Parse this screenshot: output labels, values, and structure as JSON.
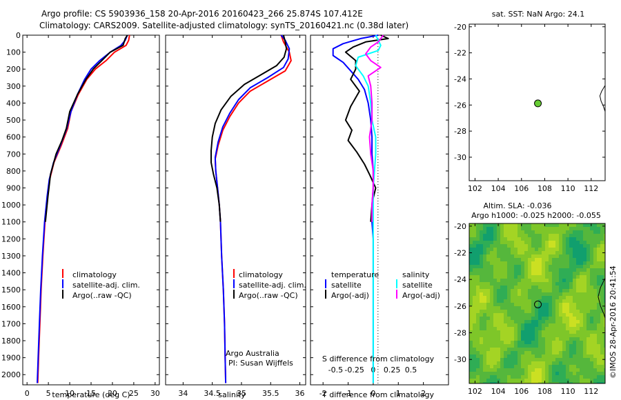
{
  "header": {
    "title_line1": "Argo profile: CS 5903936_158 20-Apr-2016 20160423_266 25.874S 107.412E",
    "title_line2": "Climatology: CARS2009. Satellite-adjusted climatology: synTS_20160421.nc (0.38d later)"
  },
  "credit": "©IMOS 28-Apr-2016 20:41:54",
  "colors": {
    "climatology": "#ff0000",
    "satellite_adj_clim": "#0000ff",
    "argo": "#000000",
    "t_satellite": "#0000ff",
    "s_satellite": "#00ffff",
    "s_argo_adj": "#ff00ff",
    "float_marker": "#66cc33"
  },
  "chart_data": [
    {
      "id": "temperature",
      "type": "line",
      "xlabel": "temperature (deg C)",
      "ylabel": "",
      "xlim": [
        -1,
        31
      ],
      "ylim": [
        2060,
        0
      ],
      "xticks": [
        "0",
        "5",
        "10",
        "15",
        "20",
        "25",
        "30"
      ],
      "xtick_values": [
        0,
        5,
        10,
        15,
        20,
        25,
        30
      ],
      "yticks": [
        "0",
        "100",
        "200",
        "300",
        "400",
        "500",
        "600",
        "700",
        "800",
        "900",
        "1000",
        "1100",
        "1200",
        "1300",
        "1400",
        "1500",
        "1600",
        "1700",
        "1800",
        "1900",
        "2000"
      ],
      "ytick_values": [
        0,
        100,
        200,
        300,
        400,
        500,
        600,
        700,
        800,
        900,
        1000,
        1100,
        1200,
        1300,
        1400,
        1500,
        1600,
        1700,
        1800,
        1900,
        2000
      ],
      "legend": [
        "climatology",
        "satellite-adj. clim.",
        "Argo(..raw -QC)"
      ],
      "series": [
        {
          "name": "climatology",
          "color": "#ff0000",
          "points": [
            [
              24,
              0
            ],
            [
              23.8,
              30
            ],
            [
              23.2,
              60
            ],
            [
              20.5,
              100
            ],
            [
              18.5,
              150
            ],
            [
              16,
              200
            ],
            [
              14,
              260
            ],
            [
              12,
              350
            ],
            [
              10.3,
              450
            ],
            [
              9.5,
              550
            ],
            [
              8,
              650
            ],
            [
              6.3,
              750
            ],
            [
              5.3,
              850
            ],
            [
              4.8,
              950
            ],
            [
              4.2,
              1100
            ],
            [
              3.7,
              1300
            ],
            [
              3.3,
              1500
            ],
            [
              3,
              1700
            ],
            [
              2.7,
              1900
            ],
            [
              2.5,
              2050
            ]
          ]
        },
        {
          "name": "satellite-adj. clim.",
          "color": "#0000ff",
          "points": [
            [
              23.5,
              0
            ],
            [
              23,
              30
            ],
            [
              22,
              60
            ],
            [
              19.5,
              100
            ],
            [
              17,
              150
            ],
            [
              15,
              200
            ],
            [
              13.5,
              260
            ],
            [
              11.8,
              350
            ],
            [
              10.3,
              450
            ],
            [
              9.3,
              550
            ],
            [
              7.8,
              650
            ],
            [
              6.2,
              750
            ],
            [
              5.2,
              850
            ],
            [
              4.7,
              950
            ],
            [
              4.1,
              1100
            ],
            [
              3.6,
              1300
            ],
            [
              3.2,
              1500
            ],
            [
              2.9,
              1700
            ],
            [
              2.6,
              1900
            ],
            [
              2.4,
              2050
            ]
          ]
        },
        {
          "name": "Argo(..raw -QC)",
          "color": "#000000",
          "points": [
            [
              23.5,
              0
            ],
            [
              23,
              20
            ],
            [
              22.5,
              60
            ],
            [
              19.5,
              100
            ],
            [
              17.5,
              150
            ],
            [
              15.5,
              200
            ],
            [
              13.8,
              260
            ],
            [
              11.8,
              350
            ],
            [
              10,
              450
            ],
            [
              9.2,
              550
            ],
            [
              8.2,
              620
            ],
            [
              6.8,
              700
            ],
            [
              5.5,
              820
            ],
            [
              4.9,
              950
            ],
            [
              4.3,
              1100
            ]
          ]
        }
      ]
    },
    {
      "id": "salinity",
      "type": "line",
      "xlabel": "salinity",
      "ylabel": "",
      "xlim": [
        33.7,
        36.1
      ],
      "ylim": [
        2060,
        0
      ],
      "xticks": [
        "34",
        "34.5",
        "35",
        "35.5",
        "36"
      ],
      "xtick_values": [
        34,
        34.5,
        35,
        35.5,
        36
      ],
      "legend": [
        "climatology",
        "satellite-adj. clim.",
        "Argo(..raw -QC)"
      ],
      "annotations": [
        "Argo Australia",
        "PI: Susan Wijffels"
      ],
      "series": [
        {
          "name": "climatology",
          "color": "#ff0000",
          "points": [
            [
              35.68,
              0
            ],
            [
              35.72,
              40
            ],
            [
              35.82,
              100
            ],
            [
              35.85,
              150
            ],
            [
              35.75,
              210
            ],
            [
              35.45,
              270
            ],
            [
              35.15,
              330
            ],
            [
              34.95,
              400
            ],
            [
              34.8,
              480
            ],
            [
              34.68,
              560
            ],
            [
              34.6,
              650
            ],
            [
              34.55,
              730
            ],
            [
              34.56,
              800
            ],
            [
              34.59,
              900
            ],
            [
              34.62,
              1000
            ],
            [
              34.64,
              1100
            ],
            [
              34.66,
              1300
            ],
            [
              34.69,
              1500
            ],
            [
              34.71,
              1700
            ],
            [
              34.72,
              1900
            ],
            [
              34.73,
              2050
            ]
          ]
        },
        {
          "name": "satellite-adj. clim.",
          "color": "#0000ff",
          "points": [
            [
              35.68,
              0
            ],
            [
              35.75,
              30
            ],
            [
              35.82,
              80
            ],
            [
              35.8,
              140
            ],
            [
              35.72,
              190
            ],
            [
              35.45,
              250
            ],
            [
              35.15,
              310
            ],
            [
              34.95,
              380
            ],
            [
              34.8,
              460
            ],
            [
              34.68,
              540
            ],
            [
              34.6,
              630
            ],
            [
              34.55,
              720
            ],
            [
              34.56,
              800
            ],
            [
              34.59,
              900
            ],
            [
              34.62,
              1000
            ],
            [
              34.64,
              1100
            ],
            [
              34.66,
              1300
            ],
            [
              34.69,
              1500
            ],
            [
              34.71,
              1700
            ],
            [
              34.72,
              1900
            ],
            [
              34.73,
              2050
            ]
          ]
        },
        {
          "name": "Argo(..raw -QC)",
          "color": "#000000",
          "points": [
            [
              35.72,
              0
            ],
            [
              35.75,
              40
            ],
            [
              35.77,
              80
            ],
            [
              35.73,
              130
            ],
            [
              35.6,
              180
            ],
            [
              35.35,
              230
            ],
            [
              35.05,
              290
            ],
            [
              34.82,
              360
            ],
            [
              34.65,
              440
            ],
            [
              34.55,
              520
            ],
            [
              34.5,
              600
            ],
            [
              34.48,
              680
            ],
            [
              34.48,
              750
            ],
            [
              34.52,
              820
            ],
            [
              34.58,
              900
            ],
            [
              34.62,
              1000
            ],
            [
              34.64,
              1100
            ]
          ]
        }
      ]
    },
    {
      "id": "difference",
      "type": "line",
      "xlabel": "T difference from climatology",
      "top_label": "S difference from climatology",
      "xlim": [
        -2.5,
        3
      ],
      "ylim": [
        2060,
        0
      ],
      "xticks": [
        "-2",
        "-1",
        "0",
        "1",
        "2"
      ],
      "xtick_values": [
        -2,
        -1,
        0,
        1,
        2
      ],
      "sticks": [
        "-0.5",
        "-0.25",
        "0",
        "0.25",
        "0.5"
      ],
      "stick_values": [
        -1.5,
        -0.75,
        0,
        0.75,
        1.5
      ],
      "legend_headers": [
        "temperature",
        "salinity"
      ],
      "legend_labels": [
        "satellite",
        "Argo(-adj)",
        "satellite",
        "Argo(-adj)"
      ],
      "series": [
        {
          "name": "satellite",
          "group": "temperature",
          "color": "#0000ff",
          "points": [
            [
              0.2,
              0
            ],
            [
              -0.5,
              20
            ],
            [
              -1.2,
              50
            ],
            [
              -1.6,
              80
            ],
            [
              -1.6,
              120
            ],
            [
              -1.2,
              160
            ],
            [
              -0.9,
              210
            ],
            [
              -0.6,
              260
            ],
            [
              -0.35,
              320
            ],
            [
              -0.2,
              400
            ],
            [
              -0.1,
              500
            ],
            [
              -0.05,
              600
            ],
            [
              -0.05,
              700
            ],
            [
              0,
              800
            ],
            [
              0,
              900
            ],
            [
              -0.05,
              1000
            ],
            [
              -0.05,
              1100
            ],
            [
              0,
              1200
            ],
            [
              0,
              1400
            ],
            [
              0,
              1700
            ],
            [
              0,
              2050
            ]
          ]
        },
        {
          "name": "Argo(-adj)",
          "group": "temperature",
          "color": "#000000",
          "points": [
            [
              0.3,
              0
            ],
            [
              0.6,
              20
            ],
            [
              -0.3,
              40
            ],
            [
              -0.8,
              70
            ],
            [
              -1.1,
              100
            ],
            [
              -0.7,
              150
            ],
            [
              -0.7,
              200
            ],
            [
              -0.9,
              260
            ],
            [
              -0.55,
              330
            ],
            [
              -0.9,
              420
            ],
            [
              -1.1,
              500
            ],
            [
              -0.85,
              560
            ],
            [
              -1.0,
              620
            ],
            [
              -0.65,
              690
            ],
            [
              -0.35,
              760
            ],
            [
              -0.15,
              820
            ],
            [
              0.1,
              900
            ],
            [
              0,
              960
            ],
            [
              -0.05,
              1000
            ],
            [
              -0.1,
              1100
            ]
          ]
        },
        {
          "name": "satellite",
          "group": "salinity",
          "color": "#00ffff",
          "points": [
            [
              0.1,
              0
            ],
            [
              0.2,
              30
            ],
            [
              0.3,
              60
            ],
            [
              0.2,
              90
            ],
            [
              -0.6,
              130
            ],
            [
              -0.7,
              180
            ],
            [
              -0.4,
              240
            ],
            [
              -0.2,
              300
            ],
            [
              -0.1,
              400
            ],
            [
              -0.05,
              500
            ],
            [
              0.1,
              600
            ],
            [
              0.1,
              700
            ],
            [
              0.05,
              800
            ],
            [
              0,
              900
            ],
            [
              0,
              1000
            ],
            [
              0,
              1100
            ],
            [
              0,
              1300
            ],
            [
              0,
              1700
            ],
            [
              0,
              2050
            ]
          ]
        },
        {
          "name": "Argo(-adj)",
          "group": "salinity",
          "color": "#ff00ff",
          "points": [
            [
              0.4,
              0
            ],
            [
              0.2,
              40
            ],
            [
              -0.1,
              70
            ],
            [
              -0.3,
              110
            ],
            [
              -0.1,
              150
            ],
            [
              0.3,
              190
            ],
            [
              -0.2,
              240
            ],
            [
              -0.1,
              300
            ],
            [
              -0.05,
              400
            ],
            [
              -0.05,
              500
            ],
            [
              -0.15,
              600
            ],
            [
              -0.1,
              700
            ],
            [
              0,
              800
            ],
            [
              0,
              900
            ],
            [
              -0.05,
              1000
            ],
            [
              -0.05,
              1100
            ]
          ]
        }
      ]
    },
    {
      "id": "sst_map",
      "type": "scatter",
      "title": "sat. SST: NaN Argo: 24.1",
      "xlim": [
        101.5,
        113.2
      ],
      "ylim": [
        -31.8,
        -19.8
      ],
      "xticks": [
        "102",
        "104",
        "106",
        "108",
        "110",
        "112"
      ],
      "xtick_values": [
        102,
        104,
        106,
        108,
        110,
        112
      ],
      "yticks": [
        "-20",
        "-22",
        "-24",
        "-26",
        "-28",
        "-30"
      ],
      "ytick_values": [
        -20,
        -22,
        -24,
        -26,
        -28,
        -30
      ],
      "float_position": [
        107.412,
        -25.874
      ],
      "coastline": [
        [
          113.2,
          -24.5
        ],
        [
          112.9,
          -24.95
        ],
        [
          112.75,
          -25.3
        ],
        [
          112.85,
          -25.7
        ],
        [
          113.05,
          -26.1
        ],
        [
          113.2,
          -26.5
        ]
      ]
    },
    {
      "id": "sla_map",
      "type": "heatmap",
      "title_line1": "Altim. SLA: -0.036",
      "title_line2": "Argo h1000: -0.025 h2000: -0.055",
      "xlim": [
        101.5,
        113.2
      ],
      "ylim": [
        -31.8,
        -19.8
      ],
      "xticks": [
        "102",
        "104",
        "106",
        "108",
        "110",
        "112"
      ],
      "xtick_values": [
        102,
        104,
        106,
        108,
        110,
        112
      ],
      "yticks": [
        "-20",
        "-22",
        "-24",
        "-26",
        "-28",
        "-30"
      ],
      "ytick_values": [
        -20,
        -22,
        -24,
        -26,
        -28,
        -30
      ],
      "float_position": [
        107.412,
        -25.874
      ],
      "coastline": [
        [
          113.2,
          -23.9
        ],
        [
          112.8,
          -24.6
        ],
        [
          112.6,
          -25.3
        ],
        [
          112.8,
          -26
        ],
        [
          113.1,
          -26.6
        ],
        [
          113.2,
          -26.9
        ]
      ],
      "field_colors": [
        "#119f6e",
        "#2fad55",
        "#55b73c",
        "#7ec629",
        "#a4d424",
        "#cbe022"
      ]
    }
  ]
}
